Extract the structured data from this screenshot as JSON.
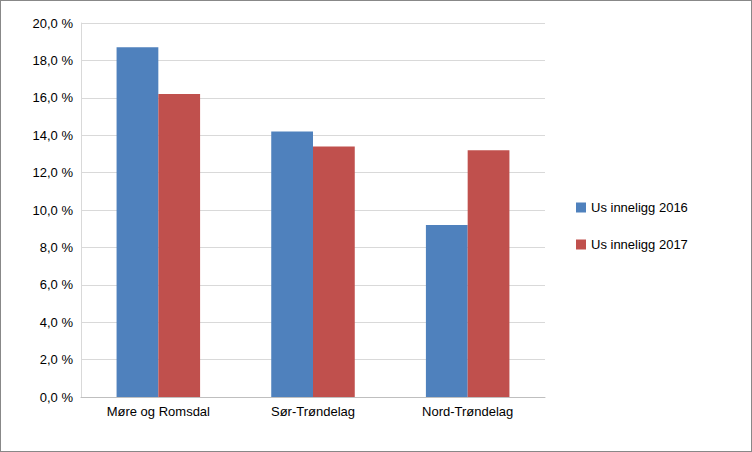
{
  "chart_data": {
    "type": "bar",
    "categories": [
      "Møre og Romsdal",
      "Sør-Trøndelag",
      "Nord-Trøndelag"
    ],
    "series": [
      {
        "name": "Us inneligg 2016",
        "color": "#4f81bd",
        "values": [
          18.7,
          14.2,
          9.2
        ]
      },
      {
        "name": "Us inneligg 2017",
        "color": "#c0504d",
        "values": [
          16.2,
          13.4,
          13.2
        ]
      }
    ],
    "ylim": [
      0,
      20
    ],
    "yticks": [
      {
        "value": 0,
        "label": "0,0 %"
      },
      {
        "value": 2,
        "label": "2,0 %"
      },
      {
        "value": 4,
        "label": "4,0 %"
      },
      {
        "value": 6,
        "label": "6,0 %"
      },
      {
        "value": 8,
        "label": "8,0 %"
      },
      {
        "value": 10,
        "label": "10,0 %"
      },
      {
        "value": 12,
        "label": "12,0 %"
      },
      {
        "value": 14,
        "label": "14,0 %"
      },
      {
        "value": 16,
        "label": "16,0 %"
      },
      {
        "value": 18,
        "label": "18,0 %"
      },
      {
        "value": 20,
        "label": "20,0 %"
      }
    ],
    "grid": true,
    "legend": "right"
  }
}
